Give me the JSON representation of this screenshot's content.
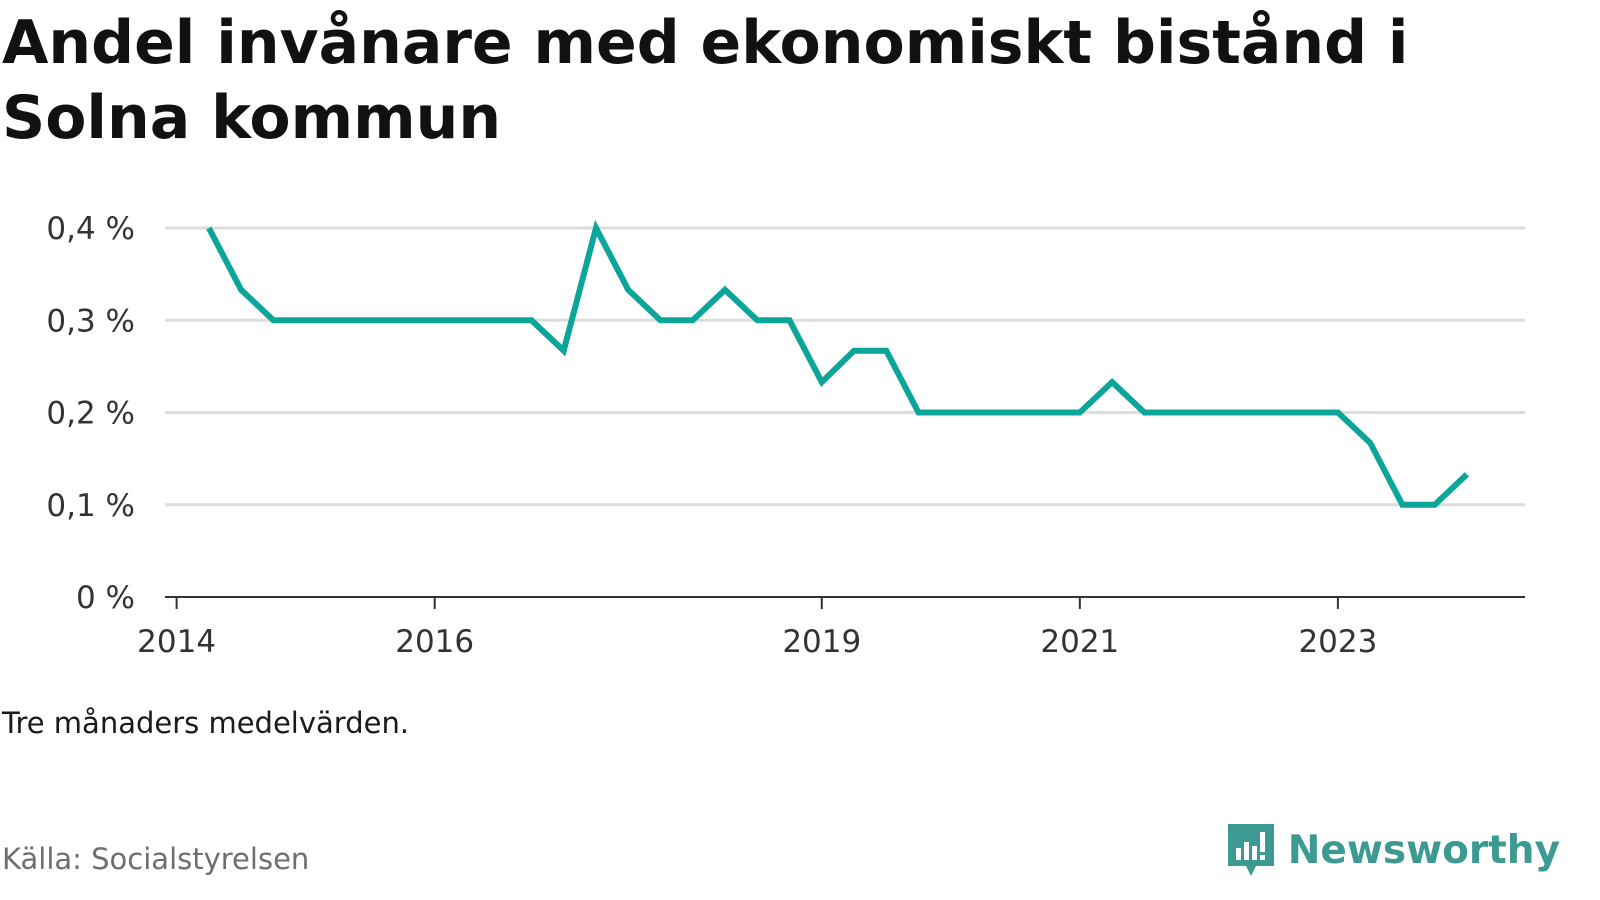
{
  "title": "Andel invånare med ekonomiskt bistånd i Solna kommun",
  "note": "Tre månaders medelvärden.",
  "source": "Källa: Socialstyrelsen",
  "brand": {
    "name": "Newsworthy",
    "icon": "newsworthy-logo-icon",
    "color": "#3c9a92"
  },
  "colors": {
    "line": "#0ca59a",
    "grid": "#dddddd",
    "axis": "#333333",
    "text": "#333333"
  },
  "chart_data": {
    "type": "line",
    "title": "Andel invånare med ekonomiskt bistånd i Solna kommun",
    "xlabel": "",
    "ylabel": "",
    "ylim": [
      0,
      0.4
    ],
    "yticks": [
      0,
      0.1,
      0.2,
      0.3,
      0.4
    ],
    "ytick_labels": [
      "0 %",
      "0,1 %",
      "0,2 %",
      "0,3 %",
      "0,4 %"
    ],
    "xticks": [
      2014,
      2016,
      2019,
      2021,
      2023
    ],
    "xtick_labels": [
      "2014",
      "2016",
      "2019",
      "2021",
      "2023"
    ],
    "grid": true,
    "series": [
      {
        "values": [
          {
            "x": "2014-04",
            "y": 0.4
          },
          {
            "x": "2014-07",
            "y": 0.333
          },
          {
            "x": "2014-10",
            "y": 0.3
          },
          {
            "x": "2015-01",
            "y": 0.3
          },
          {
            "x": "2015-04",
            "y": 0.3
          },
          {
            "x": "2015-07",
            "y": 0.3
          },
          {
            "x": "2015-10",
            "y": 0.3
          },
          {
            "x": "2016-01",
            "y": 0.3
          },
          {
            "x": "2016-04",
            "y": 0.3
          },
          {
            "x": "2016-07",
            "y": 0.3
          },
          {
            "x": "2016-10",
            "y": 0.3
          },
          {
            "x": "2017-01",
            "y": 0.267
          },
          {
            "x": "2017-04",
            "y": 0.4
          },
          {
            "x": "2017-07",
            "y": 0.333
          },
          {
            "x": "2017-10",
            "y": 0.3
          },
          {
            "x": "2018-01",
            "y": 0.3
          },
          {
            "x": "2018-04",
            "y": 0.333
          },
          {
            "x": "2018-07",
            "y": 0.3
          },
          {
            "x": "2018-10",
            "y": 0.3
          },
          {
            "x": "2019-01",
            "y": 0.233
          },
          {
            "x": "2019-04",
            "y": 0.267
          },
          {
            "x": "2019-07",
            "y": 0.267
          },
          {
            "x": "2019-10",
            "y": 0.2
          },
          {
            "x": "2020-01",
            "y": 0.2
          },
          {
            "x": "2020-04",
            "y": 0.2
          },
          {
            "x": "2020-07",
            "y": 0.2
          },
          {
            "x": "2020-10",
            "y": 0.2
          },
          {
            "x": "2021-01",
            "y": 0.2
          },
          {
            "x": "2021-04",
            "y": 0.233
          },
          {
            "x": "2021-07",
            "y": 0.2
          },
          {
            "x": "2021-10",
            "y": 0.2
          },
          {
            "x": "2022-01",
            "y": 0.2
          },
          {
            "x": "2022-04",
            "y": 0.2
          },
          {
            "x": "2022-07",
            "y": 0.2
          },
          {
            "x": "2022-10",
            "y": 0.2
          },
          {
            "x": "2023-01",
            "y": 0.2
          },
          {
            "x": "2023-04",
            "y": 0.167
          },
          {
            "x": "2023-07",
            "y": 0.1
          },
          {
            "x": "2023-10",
            "y": 0.1
          },
          {
            "x": "2024-01",
            "y": 0.133
          }
        ]
      }
    ]
  }
}
